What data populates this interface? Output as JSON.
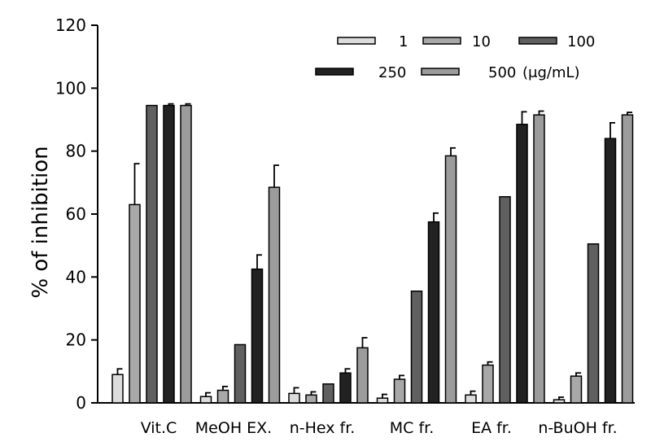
{
  "chart_data": {
    "type": "bar",
    "ylabel": "% of inhibition",
    "xlabel": "",
    "ylim": [
      0,
      120
    ],
    "yticks": [
      0,
      20,
      40,
      60,
      80,
      100,
      120
    ],
    "grid": false,
    "legend_position": "top-right",
    "legend_unit": "(μg/mL)",
    "categories": [
      "Vit.C",
      "MeOH EX.",
      "n-Hex fr.",
      "MC fr.",
      "EA fr.",
      "n-BuOH fr."
    ],
    "series": [
      {
        "name": "1",
        "color": "#dcdcdc",
        "values": [
          9,
          2,
          3,
          1.5,
          2.5,
          1
        ],
        "errors": [
          1.8,
          1.2,
          1.8,
          1.2,
          1.2,
          0.8
        ]
      },
      {
        "name": "10",
        "color": "#a8a8a8",
        "values": [
          63,
          4,
          2.5,
          7.5,
          12,
          8.5
        ],
        "errors": [
          13,
          1.2,
          1,
          1.2,
          1,
          1
        ]
      },
      {
        "name": "100",
        "color": "#606060",
        "values": [
          94.5,
          18.5,
          6,
          35.5,
          65.5,
          50.5
        ],
        "errors": [
          0,
          0,
          0,
          0,
          0,
          0
        ]
      },
      {
        "name": "250",
        "color": "#222222",
        "values": [
          94.5,
          42.5,
          9.5,
          57.5,
          88.5,
          84
        ],
        "errors": [
          0.5,
          4.5,
          1.3,
          2.8,
          4,
          5
        ]
      },
      {
        "name": "500",
        "color": "#9c9c9c",
        "values": [
          94.5,
          68.5,
          17.5,
          78.5,
          91.5,
          91.5
        ],
        "errors": [
          0.5,
          7,
          3.2,
          2.5,
          1.2,
          0.8
        ]
      }
    ]
  }
}
